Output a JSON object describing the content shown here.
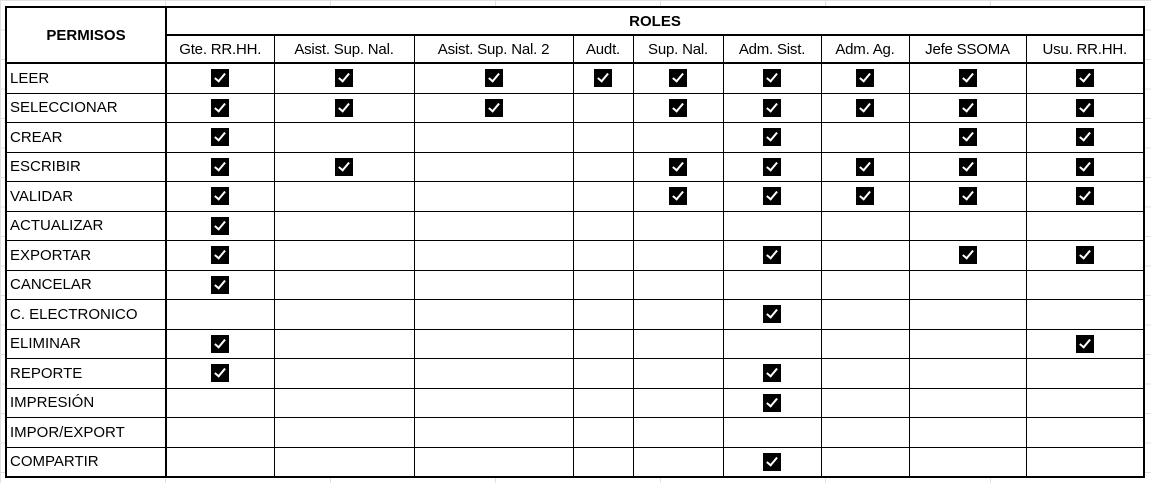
{
  "header": {
    "permissions_label": "PERMISOS",
    "roles_label": "ROLES"
  },
  "roles": [
    "Gte. RR.HH.",
    "Asist. Sup. Nal.",
    "Asist. Sup. Nal. 2",
    "Audt.",
    "Sup. Nal.",
    "Adm. Sist.",
    "Adm. Ag.",
    "Jefe SSOMA",
    "Usu. RR.HH."
  ],
  "check_icon": "checked-checkbox-icon",
  "rows": [
    {
      "permission": "LEER",
      "checks": [
        1,
        1,
        1,
        1,
        1,
        1,
        1,
        1,
        1
      ]
    },
    {
      "permission": "SELECCIONAR",
      "checks": [
        1,
        1,
        1,
        0,
        1,
        1,
        1,
        1,
        1
      ]
    },
    {
      "permission": "CREAR",
      "checks": [
        1,
        0,
        0,
        0,
        0,
        1,
        0,
        1,
        1
      ]
    },
    {
      "permission": "ESCRIBIR",
      "checks": [
        1,
        1,
        0,
        0,
        1,
        1,
        1,
        1,
        1
      ]
    },
    {
      "permission": "VALIDAR",
      "checks": [
        1,
        0,
        0,
        0,
        1,
        1,
        1,
        1,
        1
      ]
    },
    {
      "permission": "ACTUALIZAR",
      "checks": [
        1,
        0,
        0,
        0,
        0,
        0,
        0,
        0,
        0
      ]
    },
    {
      "permission": "EXPORTAR",
      "checks": [
        1,
        0,
        0,
        0,
        0,
        1,
        0,
        1,
        1
      ]
    },
    {
      "permission": "CANCELAR",
      "checks": [
        1,
        0,
        0,
        0,
        0,
        0,
        0,
        0,
        0
      ]
    },
    {
      "permission": "C. ELECTRONICO",
      "checks": [
        0,
        0,
        0,
        0,
        0,
        1,
        0,
        0,
        0
      ]
    },
    {
      "permission": "ELIMINAR",
      "checks": [
        1,
        0,
        0,
        0,
        0,
        0,
        0,
        0,
        1
      ]
    },
    {
      "permission": "REPORTE",
      "checks": [
        1,
        0,
        0,
        0,
        0,
        1,
        0,
        0,
        0
      ]
    },
    {
      "permission": "IMPRESIÓN",
      "checks": [
        0,
        0,
        0,
        0,
        0,
        1,
        0,
        0,
        0
      ]
    },
    {
      "permission": "IMPOR/EXPORT",
      "checks": [
        0,
        0,
        0,
        0,
        0,
        0,
        0,
        0,
        0
      ]
    },
    {
      "permission": "COMPARTIR",
      "checks": [
        0,
        0,
        0,
        0,
        0,
        1,
        0,
        0,
        0
      ]
    }
  ]
}
